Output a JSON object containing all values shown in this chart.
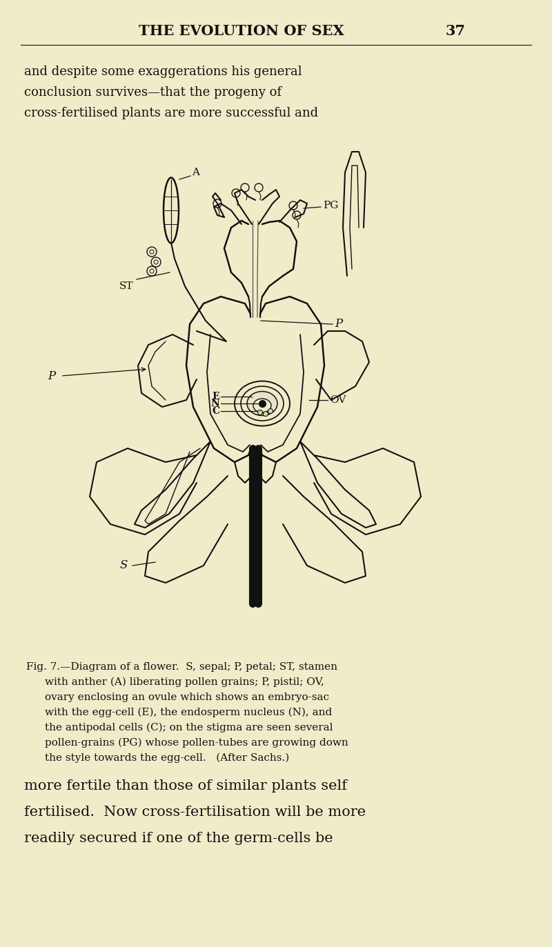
{
  "bg_color": "#f0ecca",
  "header_text": "THE EVOLUTION OF SEX",
  "page_num": "37",
  "top_para_lines": [
    "and despite some exaggerations his general",
    "conclusion survives—that the progeny of",
    "cross-fertilised plants are more successful and"
  ],
  "caption_line0": "Fig. 7.—Diagram of a flower.  S, sepal; P, petal; ST, stamen",
  "caption_lines": [
    "with anther (A) liberating pollen grains; P, pistil; OV,",
    "ovary enclosing an ovule which shows an embryo-sac",
    "with the egg-cell (E), the endosperm nucleus (N), and",
    "the antipodal cells (C); on the stigma are seen several",
    "pollen-grains (PG) whose pollen-tubes are growing down",
    "the style towards the egg-cell.   (After Sachs.)"
  ],
  "bottom_para_lines": [
    "more fertile than those of similar plants self",
    "fertilised.  Now cross-fertilisation will be more",
    "readily secured if one of the germ-cells be"
  ],
  "text_color": "#111111",
  "diagram_color": "#111111",
  "bg_color_inner": "#f0ecca"
}
